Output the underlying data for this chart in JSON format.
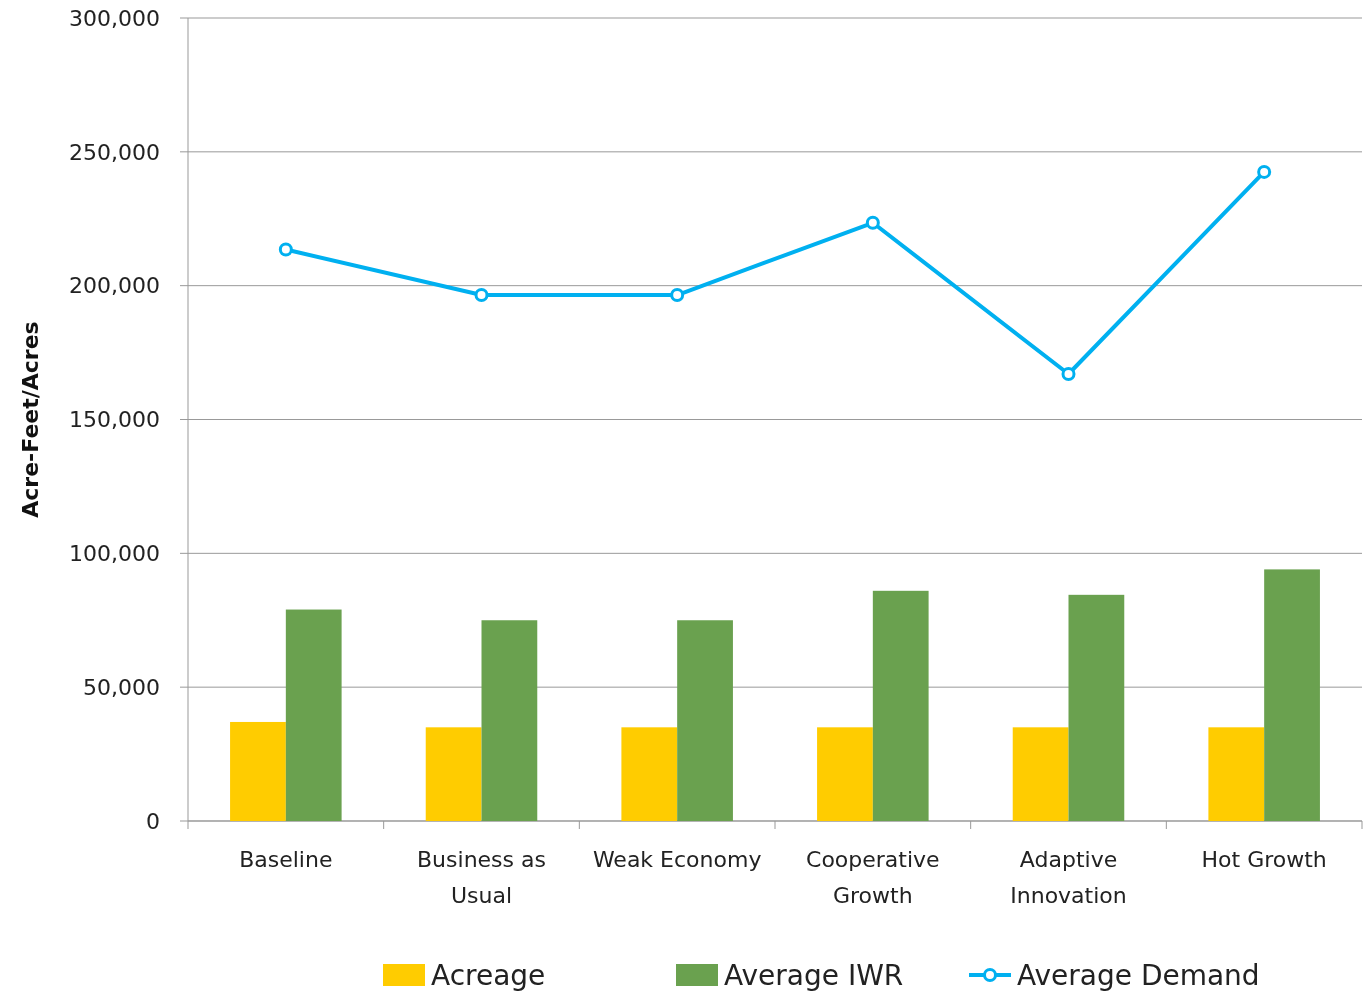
{
  "chart_data": {
    "type": "bar",
    "ylabel": "Acre-Feet/Acres",
    "categories": [
      "Baseline",
      "Business as Usual",
      "Weak Economy",
      "Cooperative Growth",
      "Adaptive Innovation",
      "Hot Growth"
    ],
    "series": [
      {
        "name": "Acreage",
        "color": "#ffcc00",
        "values": [
          37000,
          35000,
          35000,
          35000,
          35000,
          35000
        ]
      },
      {
        "name": "Average IWR",
        "color": "#6aa14f",
        "values": [
          79000,
          75000,
          75000,
          86000,
          84500,
          94000
        ]
      },
      {
        "name": "Average Demand",
        "type": "line",
        "color": "#00b0f0",
        "marker": "circle",
        "values": [
          213500,
          196500,
          196500,
          223500,
          167000,
          242500
        ]
      }
    ],
    "ylim": [
      0,
      300000
    ],
    "yticks": [
      {
        "value": 0,
        "label": "0"
      },
      {
        "value": 50000,
        "label": "50,000"
      },
      {
        "value": 100000,
        "label": "100,000"
      },
      {
        "value": 150000,
        "label": "150,000"
      },
      {
        "value": 200000,
        "label": "200,000"
      },
      {
        "value": 250000,
        "label": "250,000"
      },
      {
        "value": 300000,
        "label": "300,000"
      }
    ],
    "grid": "y",
    "legend": "bottom"
  }
}
